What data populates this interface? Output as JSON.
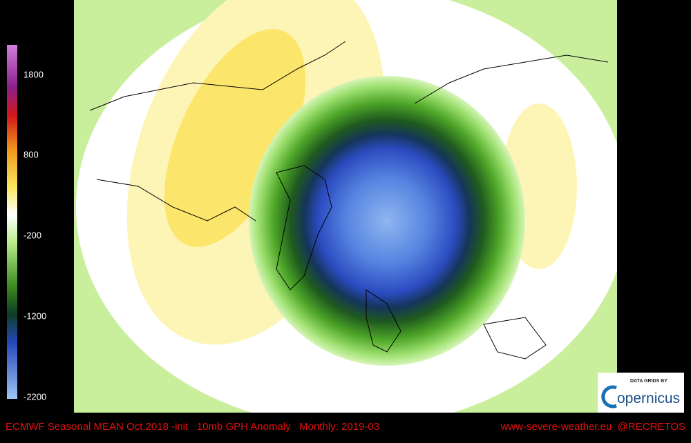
{
  "colorbar": {
    "labels": [
      1800,
      800,
      -200,
      -1200,
      -2200
    ]
  },
  "footer": {
    "left": "ECMWF Seasonal MEAN Oct.2018 -init   10mb GPH Anomaly   Monthly: 2019-03",
    "right": "www-severe-weather.eu  @RECRETOS"
  },
  "logo": {
    "caption": "DATA GRIDS BY",
    "wordmark": "opernicus"
  }
}
